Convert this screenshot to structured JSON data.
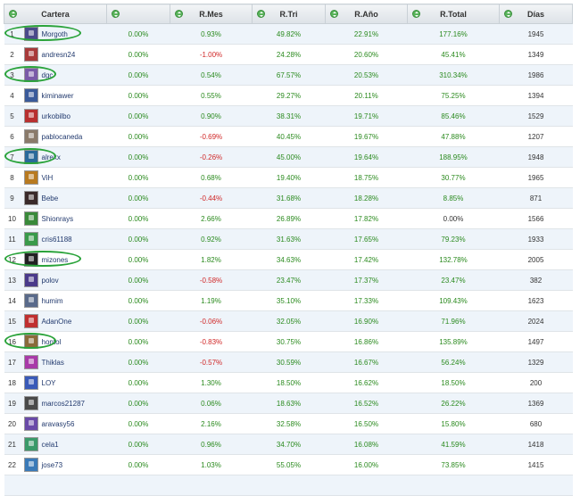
{
  "headers": {
    "cartera": "Cartera",
    "col2": "",
    "rmes": "R.Mes",
    "rtri": "R.Tri",
    "rano": "R.Año",
    "rtotal": "R.Total",
    "dias": "Días"
  },
  "rows": [
    {
      "pos": "1",
      "user": "Morgoth",
      "v1": "0.00%",
      "mes": "0.93%",
      "tri": "49.82%",
      "ano": "22.91%",
      "total": "177.16%",
      "dias": "1945",
      "mes_neg": false,
      "total_zero": false,
      "circled": true,
      "avatar_color": "#4a4a8a"
    },
    {
      "pos": "2",
      "user": "andresn24",
      "v1": "0.00%",
      "mes": "-1.00%",
      "tri": "24.28%",
      "ano": "20.60%",
      "total": "45.41%",
      "dias": "1349",
      "mes_neg": true,
      "total_zero": false,
      "circled": false,
      "avatar_color": "#a83a3a"
    },
    {
      "pos": "3",
      "user": "dgc",
      "v1": "0.00%",
      "mes": "0.54%",
      "tri": "67.57%",
      "ano": "20.53%",
      "total": "310.34%",
      "dias": "1986",
      "mes_neg": false,
      "total_zero": false,
      "circled": true,
      "avatar_color": "#7a5aa8"
    },
    {
      "pos": "4",
      "user": "kiminawer",
      "v1": "0.00%",
      "mes": "0.55%",
      "tri": "29.27%",
      "ano": "20.11%",
      "total": "75.25%",
      "dias": "1394",
      "mes_neg": false,
      "total_zero": false,
      "circled": false,
      "avatar_color": "#3a5a9a"
    },
    {
      "pos": "5",
      "user": "urkobilbo",
      "v1": "0.00%",
      "mes": "0.90%",
      "tri": "38.31%",
      "ano": "19.71%",
      "total": "85.46%",
      "dias": "1529",
      "mes_neg": false,
      "total_zero": false,
      "circled": false,
      "avatar_color": "#b83030"
    },
    {
      "pos": "6",
      "user": "pablocaneda",
      "v1": "0.00%",
      "mes": "-0.69%",
      "tri": "40.45%",
      "ano": "19.67%",
      "total": "47.88%",
      "dias": "1207",
      "mes_neg": true,
      "total_zero": false,
      "circled": false,
      "avatar_color": "#8a7a6a"
    },
    {
      "pos": "7",
      "user": "alrexx",
      "v1": "0.00%",
      "mes": "-0.26%",
      "tri": "45.00%",
      "ano": "19.64%",
      "total": "188.95%",
      "dias": "1948",
      "mes_neg": true,
      "total_zero": false,
      "circled": true,
      "avatar_color": "#2a6a9a"
    },
    {
      "pos": "8",
      "user": "ViH",
      "v1": "0.00%",
      "mes": "0.68%",
      "tri": "19.40%",
      "ano": "18.75%",
      "total": "30.77%",
      "dias": "1965",
      "mes_neg": false,
      "total_zero": false,
      "circled": false,
      "avatar_color": "#b87a20"
    },
    {
      "pos": "9",
      "user": "Bebe",
      "v1": "0.00%",
      "mes": "-0.44%",
      "tri": "31.68%",
      "ano": "18.28%",
      "total": "8.85%",
      "dias": "871",
      "mes_neg": true,
      "total_zero": false,
      "circled": false,
      "avatar_color": "#3a2a2a"
    },
    {
      "pos": "10",
      "user": "Shionrays",
      "v1": "0.00%",
      "mes": "2.66%",
      "tri": "26.89%",
      "ano": "17.82%",
      "total": "0.00%",
      "dias": "1566",
      "mes_neg": false,
      "total_zero": true,
      "circled": false,
      "avatar_color": "#3a8a3a"
    },
    {
      "pos": "11",
      "user": "cris61188",
      "v1": "0.00%",
      "mes": "0.92%",
      "tri": "31.63%",
      "ano": "17.65%",
      "total": "79.23%",
      "dias": "1933",
      "mes_neg": false,
      "total_zero": false,
      "circled": false,
      "avatar_color": "#3a9a4a"
    },
    {
      "pos": "12",
      "user": "mizones",
      "v1": "0.00%",
      "mes": "1.82%",
      "tri": "34.63%",
      "ano": "17.42%",
      "total": "132.78%",
      "dias": "2005",
      "mes_neg": false,
      "total_zero": false,
      "circled": true,
      "avatar_color": "#222222"
    },
    {
      "pos": "13",
      "user": "polov",
      "v1": "0.00%",
      "mes": "-0.58%",
      "tri": "23.47%",
      "ano": "17.37%",
      "total": "23.47%",
      "dias": "382",
      "mes_neg": true,
      "total_zero": false,
      "circled": false,
      "avatar_color": "#4a3a8a"
    },
    {
      "pos": "14",
      "user": "humim",
      "v1": "0.00%",
      "mes": "1.19%",
      "tri": "35.10%",
      "ano": "17.33%",
      "total": "109.43%",
      "dias": "1623",
      "mes_neg": false,
      "total_zero": false,
      "circled": false,
      "avatar_color": "#5a6a8a"
    },
    {
      "pos": "15",
      "user": "AdanOne",
      "v1": "0.00%",
      "mes": "-0.06%",
      "tri": "32.05%",
      "ano": "16.90%",
      "total": "71.96%",
      "dias": "2024",
      "mes_neg": true,
      "total_zero": false,
      "circled": false,
      "avatar_color": "#c03030"
    },
    {
      "pos": "16",
      "user": "hontol",
      "v1": "0.00%",
      "mes": "-0.83%",
      "tri": "30.75%",
      "ano": "16.86%",
      "total": "135.89%",
      "dias": "1497",
      "mes_neg": true,
      "total_zero": false,
      "circled": true,
      "avatar_color": "#8a6a3a"
    },
    {
      "pos": "17",
      "user": "Thiklas",
      "v1": "0.00%",
      "mes": "-0.57%",
      "tri": "30.59%",
      "ano": "16.67%",
      "total": "56.24%",
      "dias": "1329",
      "mes_neg": true,
      "total_zero": false,
      "circled": false,
      "avatar_color": "#a83aa8"
    },
    {
      "pos": "18",
      "user": "LOY",
      "v1": "0.00%",
      "mes": "1.30%",
      "tri": "18.50%",
      "ano": "16.62%",
      "total": "18.50%",
      "dias": "200",
      "mes_neg": false,
      "total_zero": false,
      "circled": false,
      "avatar_color": "#3a5ab8"
    },
    {
      "pos": "19",
      "user": "marcos21287",
      "v1": "0.00%",
      "mes": "0.06%",
      "tri": "18.63%",
      "ano": "16.52%",
      "total": "26.22%",
      "dias": "1369",
      "mes_neg": false,
      "total_zero": false,
      "circled": false,
      "avatar_color": "#4a4a4a"
    },
    {
      "pos": "20",
      "user": "aravasy56",
      "v1": "0.00%",
      "mes": "2.16%",
      "tri": "32.58%",
      "ano": "16.50%",
      "total": "15.80%",
      "dias": "680",
      "mes_neg": false,
      "total_zero": false,
      "circled": false,
      "avatar_color": "#6a4aa8"
    },
    {
      "pos": "21",
      "user": "cela1",
      "v1": "0.00%",
      "mes": "0.96%",
      "tri": "34.70%",
      "ano": "16.08%",
      "total": "41.59%",
      "dias": "1418",
      "mes_neg": false,
      "total_zero": false,
      "circled": false,
      "avatar_color": "#3a9a6a"
    },
    {
      "pos": "22",
      "user": "jose73",
      "v1": "0.00%",
      "mes": "1.03%",
      "tri": "55.05%",
      "ano": "16.00%",
      "total": "73.85%",
      "dias": "1415",
      "mes_neg": false,
      "total_zero": false,
      "circled": false,
      "avatar_color": "#3a7ab8"
    }
  ],
  "colors": {
    "positive": "#2a8a1e",
    "negative": "#d02828",
    "circle": "#2aa33a",
    "row_alt": "#eef4fa"
  }
}
